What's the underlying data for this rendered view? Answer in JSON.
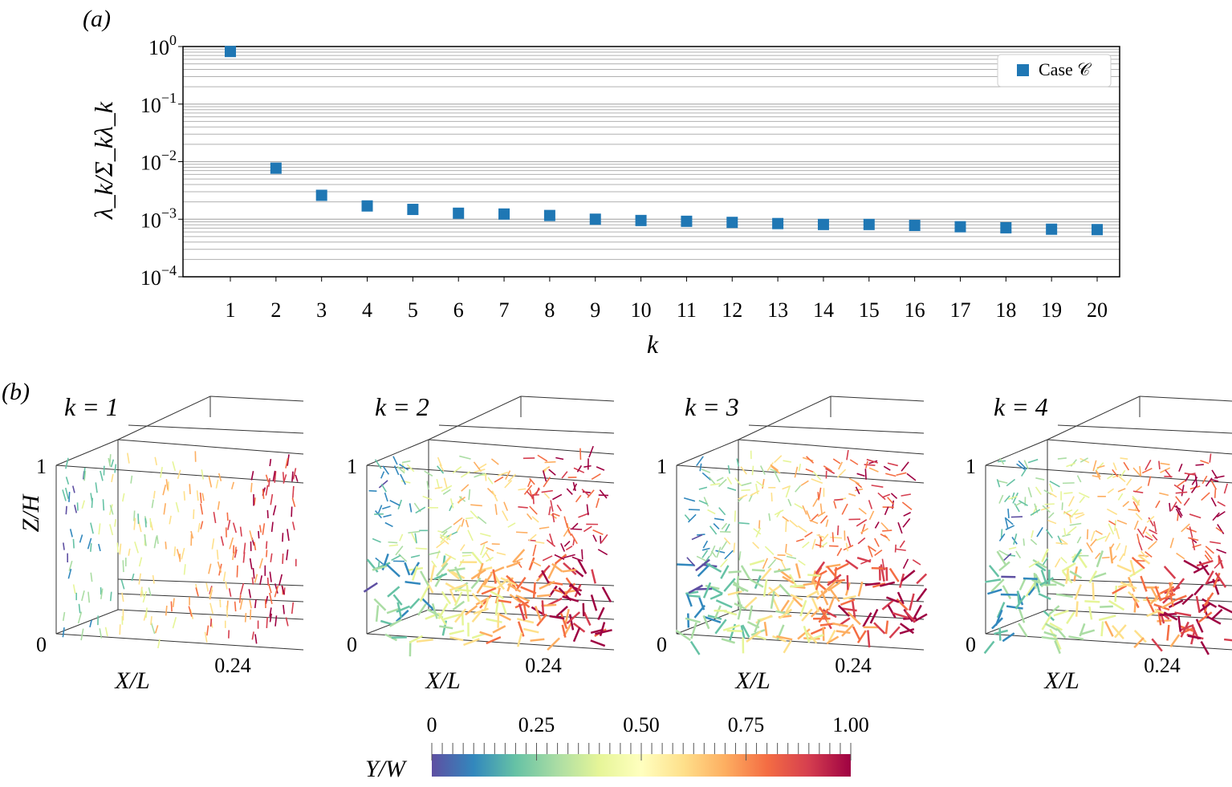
{
  "chart_data": [
    {
      "panel_label": "(a)",
      "type": "scatter",
      "xlabel": "k",
      "ylabel": "λ_k/Σ_kλ_k",
      "yscale": "log",
      "ylim": [
        0.0001,
        1
      ],
      "yticks": [
        {
          "base": "10",
          "exp": "0"
        },
        {
          "base": "10",
          "exp": "−1"
        },
        {
          "base": "10",
          "exp": "−2"
        },
        {
          "base": "10",
          "exp": "−3"
        },
        {
          "base": "10",
          "exp": "−4"
        }
      ],
      "x": [
        1,
        2,
        3,
        4,
        5,
        6,
        7,
        8,
        9,
        10,
        11,
        12,
        13,
        14,
        15,
        16,
        17,
        18,
        19,
        20
      ],
      "xtick_labels": [
        "1",
        "2",
        "3",
        "4",
        "5",
        "6",
        "7",
        "8",
        "9",
        "10",
        "11",
        "12",
        "13",
        "14",
        "15",
        "16",
        "17",
        "18",
        "19",
        "20"
      ],
      "series": [
        {
          "name": "Case 𝒞",
          "color": "#1f77b4",
          "values": [
            0.82,
            0.0077,
            0.0026,
            0.0017,
            0.00148,
            0.00127,
            0.00123,
            0.00116,
            0.001,
            0.00095,
            0.00092,
            0.00088,
            0.00084,
            0.00081,
            0.00081,
            0.00078,
            0.00074,
            0.00071,
            0.00067,
            0.00066
          ]
        }
      ],
      "legend": {
        "label": "Case 𝒞",
        "placement": "top-right"
      },
      "grid": "horizontal major and minor"
    },
    {
      "panel_label": "(b)",
      "type": "3d-quiver",
      "panels": [
        {
          "title": "k = 1"
        },
        {
          "title": "k = 2"
        },
        {
          "title": "k = 3"
        },
        {
          "title": "k = 4"
        }
      ],
      "zlabel": "Z/H",
      "z_ticks": [
        "0",
        "1"
      ],
      "xlabel": "X/L",
      "x_tick": "0.24",
      "colorbar": {
        "label": "Y/W",
        "ticks": [
          "0",
          "0.25",
          "0.50",
          "0.75",
          "1.00"
        ],
        "colormap": "Spectral_r",
        "range": [
          0,
          1
        ]
      }
    }
  ]
}
